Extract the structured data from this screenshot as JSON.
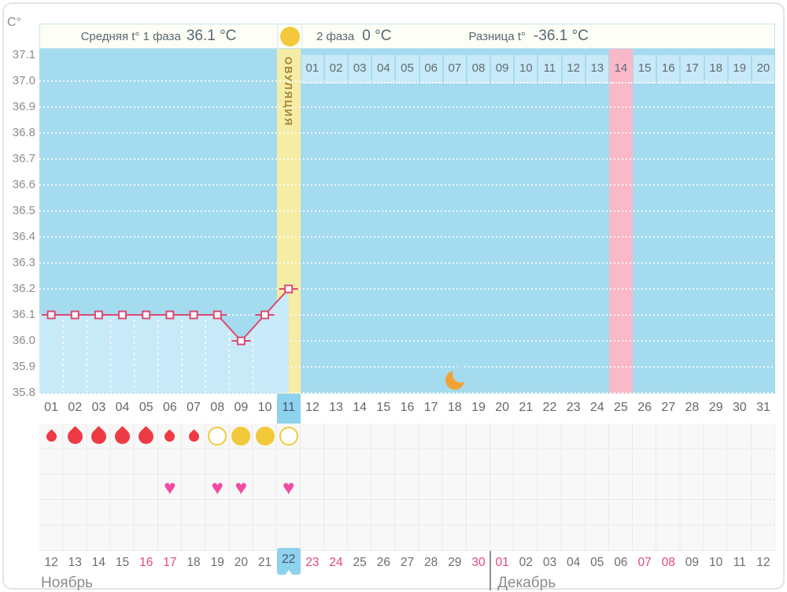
{
  "header": {
    "y_axis_unit": "С°",
    "phase1_label": "Средняя t° 1 фаза",
    "phase1_value": "36.1 °C",
    "phase2_label": "2 фаза",
    "phase2_value": "0 °C",
    "diff_label": "Разница t°",
    "diff_value": "-36.1 °C"
  },
  "chart_data": {
    "type": "line",
    "title": "График базальной температуры",
    "ylabel": "С°",
    "ylim": [
      35.8,
      37.1
    ],
    "ytick_labels": [
      "37.1",
      "37.0",
      "36.9",
      "36.8",
      "36.7",
      "36.6",
      "36.5",
      "36.4",
      "36.3",
      "36.2",
      "36.1",
      "36.0",
      "35.9",
      "35.8"
    ],
    "x_days": 31,
    "day_labels": [
      "01",
      "02",
      "03",
      "04",
      "05",
      "06",
      "07",
      "08",
      "09",
      "10",
      "11",
      "12",
      "13",
      "14",
      "15",
      "16",
      "17",
      "18",
      "19",
      "20",
      "21",
      "22",
      "23",
      "24",
      "25",
      "26",
      "27",
      "28",
      "29",
      "30",
      "31"
    ],
    "values": [
      36.1,
      36.1,
      36.1,
      36.1,
      36.1,
      36.1,
      36.1,
      36.1,
      36.0,
      36.1,
      36.2,
      null,
      null,
      null,
      null,
      null,
      null,
      null,
      null,
      null,
      null,
      null,
      null,
      null,
      null,
      null,
      null,
      null,
      null,
      null,
      null
    ],
    "today_day": 11,
    "ovulation_day": 11,
    "ovulation_column_label": "ОВУЛЯЦИЯ",
    "predicted_period_day": 25,
    "dpo_row": {
      "start_day": 12,
      "labels": [
        "01",
        "02",
        "03",
        "04",
        "05",
        "06",
        "07",
        "08",
        "09",
        "10",
        "11",
        "12",
        "13",
        "14",
        "15",
        "16",
        "17",
        "18",
        "19",
        "20"
      ],
      "highlighted_label": "14"
    },
    "menstruation": [
      {
        "day": 1,
        "size": "small"
      },
      {
        "day": 2,
        "size": "big"
      },
      {
        "day": 3,
        "size": "big"
      },
      {
        "day": 4,
        "size": "big"
      },
      {
        "day": 5,
        "size": "big"
      },
      {
        "day": 6,
        "size": "small"
      },
      {
        "day": 7,
        "size": "small"
      }
    ],
    "ovulation_tests": [
      {
        "day": 8,
        "result": "negative"
      },
      {
        "day": 9,
        "result": "positive"
      },
      {
        "day": 10,
        "result": "positive"
      },
      {
        "day": 11,
        "result": "negative"
      }
    ],
    "intimacy_days": [
      6,
      8,
      9,
      11
    ],
    "moon_day": 18,
    "dates": [
      {
        "label": "12",
        "weekend": false
      },
      {
        "label": "13",
        "weekend": false
      },
      {
        "label": "14",
        "weekend": false
      },
      {
        "label": "15",
        "weekend": false
      },
      {
        "label": "16",
        "weekend": true
      },
      {
        "label": "17",
        "weekend": true
      },
      {
        "label": "18",
        "weekend": false
      },
      {
        "label": "19",
        "weekend": false
      },
      {
        "label": "20",
        "weekend": false
      },
      {
        "label": "21",
        "weekend": false
      },
      {
        "label": "22",
        "weekend": false
      },
      {
        "label": "23",
        "weekend": true
      },
      {
        "label": "24",
        "weekend": true
      },
      {
        "label": "25",
        "weekend": false
      },
      {
        "label": "26",
        "weekend": false
      },
      {
        "label": "27",
        "weekend": false
      },
      {
        "label": "28",
        "weekend": false
      },
      {
        "label": "29",
        "weekend": false
      },
      {
        "label": "30",
        "weekend": true
      },
      {
        "label": "01",
        "weekend": true
      },
      {
        "label": "02",
        "weekend": false
      },
      {
        "label": "03",
        "weekend": false
      },
      {
        "label": "04",
        "weekend": false
      },
      {
        "label": "05",
        "weekend": false
      },
      {
        "label": "06",
        "weekend": false
      },
      {
        "label": "07",
        "weekend": true
      },
      {
        "label": "08",
        "weekend": true
      },
      {
        "label": "09",
        "weekend": false
      },
      {
        "label": "10",
        "weekend": false
      },
      {
        "label": "11",
        "weekend": false
      },
      {
        "label": "12",
        "weekend": false
      }
    ],
    "months": [
      {
        "name": "Ноябрь",
        "start_day": 1
      },
      {
        "name": "Декабрь",
        "start_day": 20
      }
    ]
  },
  "colors": {
    "plot_bg": "#a5dbee",
    "area_fill": "#c8e9f7",
    "ovulation_band": "#f6eca6",
    "period_band": "#f9b9c8",
    "dpo_cell": "#c8e9f8",
    "dpo_cell_highlight": "#f9b9c8",
    "line": "#db4a72",
    "marker_fill": "#ffffff",
    "drop": "#ee3a44",
    "test_yellow": "#f3c93b",
    "heart": "#f14ba2",
    "moon": "#f0a235",
    "today_bg": "#8fd2ed",
    "weekend_text": "#e14a78"
  }
}
